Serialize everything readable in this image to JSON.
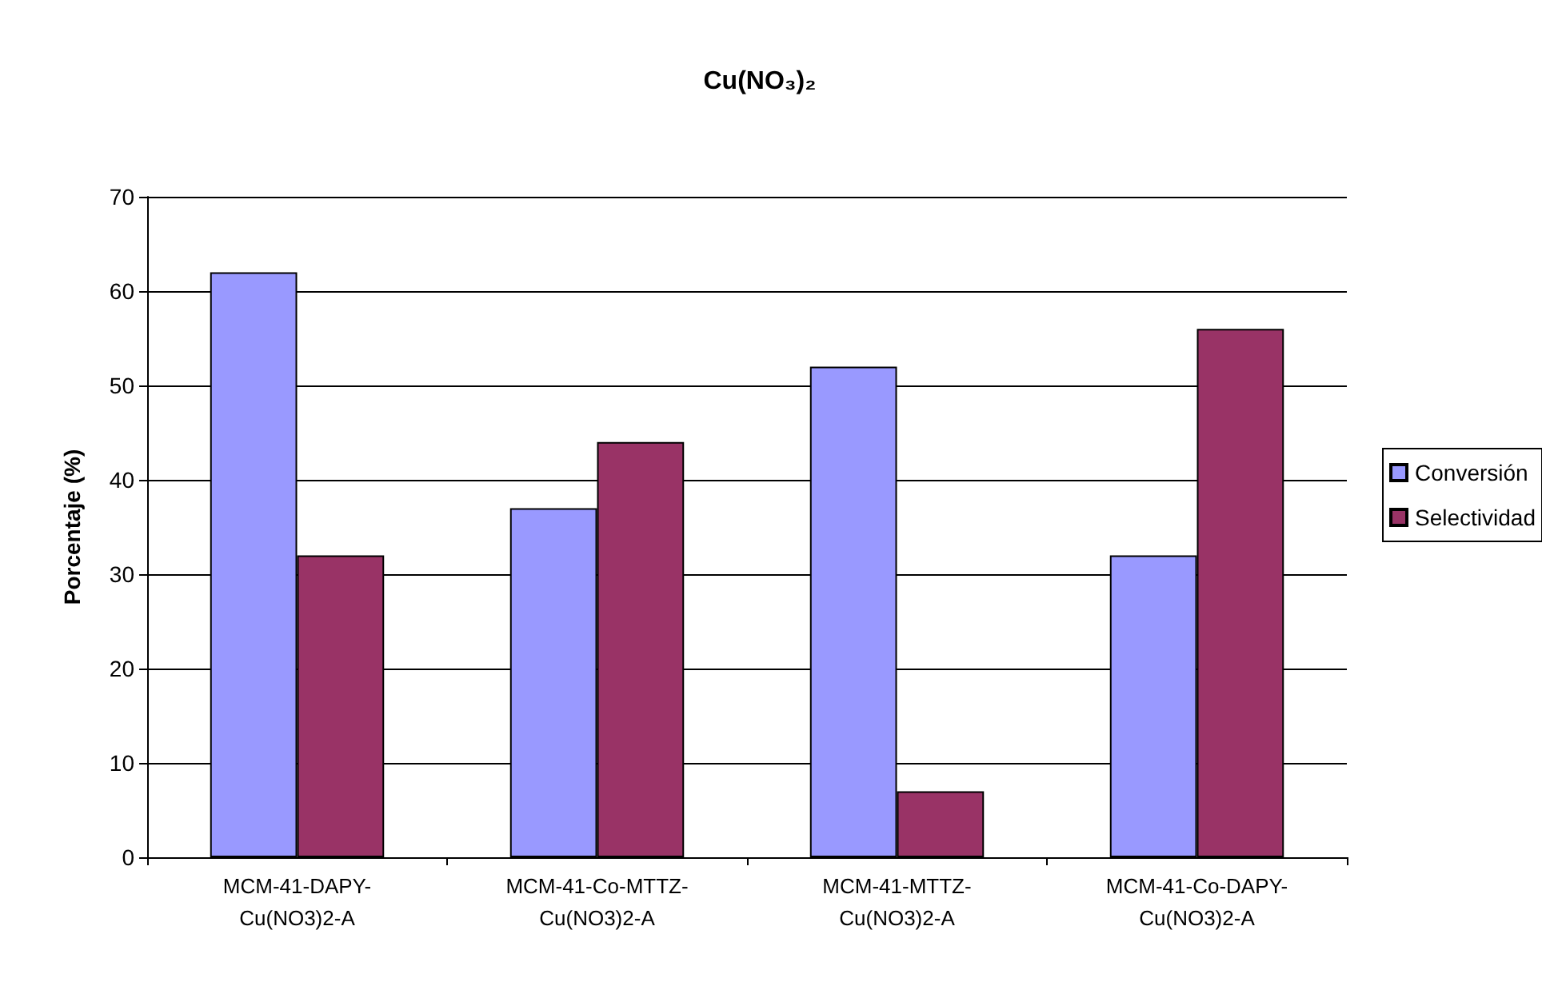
{
  "chart_data": {
    "type": "bar",
    "title": "Cu(NO₃)₂",
    "ylabel": "Porcentaje (%)",
    "categories": [
      "MCM-41-DAPY-\nCu(NO3)2-A",
      "MCM-41-Co-MTTZ-\nCu(NO3)2-A",
      "MCM-41-MTTZ-\nCu(NO3)2-A",
      "MCM-41-Co-DAPY-\nCu(NO3)2-A"
    ],
    "series": [
      {
        "name": "Conversión",
        "color": "#9999ff",
        "values": [
          62,
          37,
          52,
          32
        ]
      },
      {
        "name": "Selectividad",
        "color": "#993366",
        "values": [
          32,
          44,
          7,
          56
        ]
      }
    ],
    "ylim": [
      0,
      70
    ],
    "yticks": [
      0,
      10,
      20,
      30,
      40,
      50,
      60,
      70
    ],
    "grid": "y",
    "legend": "right"
  }
}
